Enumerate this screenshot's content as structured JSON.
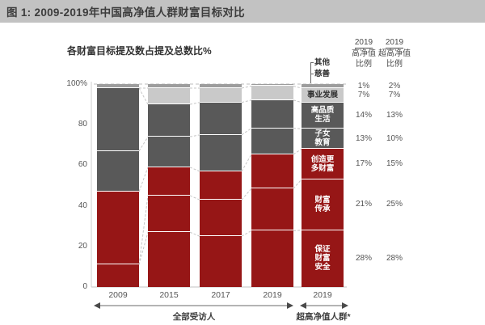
{
  "title": "图 1: 2009-2019年中国高净值人群财富目标对比",
  "subtitle": "各财富目标提及数占提及总数比%",
  "colors": {
    "red": "#961616",
    "dark_gray": "#595959",
    "light_gray": "#c9c9c9",
    "sliver_gray": "#9d9d9d",
    "titlebar_bg": "#c2c2c2",
    "connector": "#c6c6c6",
    "axis": "#cfcfcf"
  },
  "chart_data": {
    "type": "stacked-bar",
    "unit": "%",
    "ylim": [
      0,
      100
    ],
    "y_ticks": [
      "100%",
      "80",
      "60",
      "40",
      "20",
      "0"
    ],
    "x_categories": [
      "2009",
      "2015",
      "2017",
      "2019",
      "2019"
    ],
    "group_labels": [
      "全部受访人",
      "超高净值人群*"
    ],
    "grid": "dashed-top-only",
    "legend_position": "labels-on-last-bar",
    "segments_bottom_to_top": [
      {
        "name": "保证财富安全",
        "label_lines": [
          "保证",
          "财富",
          "安全"
        ],
        "color_key": "red",
        "text_color": "#fff",
        "values": [
          11,
          27,
          25,
          28,
          28
        ]
      },
      {
        "name": "财富传承",
        "label_lines": [
          "财富",
          "传承"
        ],
        "color_key": "red",
        "text_color": "#fff",
        "values": [
          0,
          18,
          18,
          21,
          25
        ]
      },
      {
        "name": "创造更多财富",
        "label_lines": [
          "创造更",
          "多财富"
        ],
        "color_key": "red",
        "text_color": "#fff",
        "values": [
          36,
          14,
          14,
          17,
          15
        ]
      },
      {
        "name": "子女教育",
        "label_lines": [
          "子女",
          "教育"
        ],
        "color_key": "dark_gray",
        "text_color": "#fff",
        "values": [
          20,
          15,
          18,
          13,
          10
        ]
      },
      {
        "name": "高品质生活",
        "label_lines": [
          "高品质",
          "生活"
        ],
        "color_key": "dark_gray",
        "text_color": "#fff",
        "values": [
          31,
          16,
          16,
          14,
          13
        ]
      },
      {
        "name": "事业发展",
        "label_lines": [
          "事业发展"
        ],
        "color_key": "light_gray",
        "text_color": "#333",
        "values": [
          0,
          8,
          7,
          7,
          7
        ]
      },
      {
        "name": "慈善/其他",
        "label_lines": [],
        "color_key": "sliver_gray",
        "text_color": "#fff",
        "values": [
          2,
          2,
          2,
          1,
          2
        ]
      }
    ]
  },
  "annotation": {
    "other": "其他",
    "charity": "慈善"
  },
  "right_table": {
    "col1_header": [
      "2019",
      "高净值",
      "比例"
    ],
    "col2_header": [
      "2019",
      "超高净值",
      "比例"
    ],
    "rows": [
      {
        "hnw": "1%",
        "uhnw": "2%"
      },
      {
        "hnw": "7%",
        "uhnw": "7%"
      },
      {
        "hnw": "14%",
        "uhnw": "13%"
      },
      {
        "hnw": "13%",
        "uhnw": "10%"
      },
      {
        "hnw": "17%",
        "uhnw": "15%"
      },
      {
        "hnw": "21%",
        "uhnw": "25%"
      },
      {
        "hnw": "28%",
        "uhnw": "28%"
      }
    ]
  }
}
